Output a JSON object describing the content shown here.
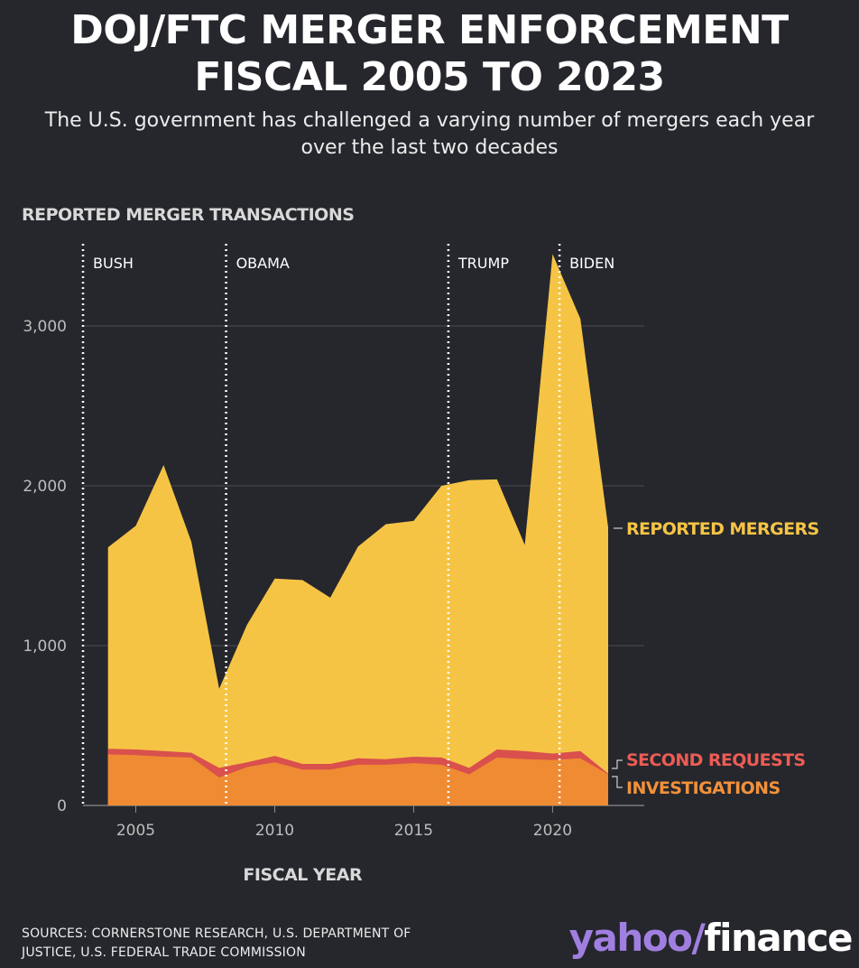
{
  "title_lines": [
    "DOJ/FTC MERGER ENFORCEMENT",
    "FISCAL 2005 TO 2023"
  ],
  "subtitle_lines": [
    "The U.S. government has challenged a varying number of mergers each year",
    "over the last two decades"
  ],
  "sources_lines": [
    "SOURCES: CORNERSTONE RESEARCH, U.S. DEPARTMENT OF",
    "JUSTICE, U.S. FEDERAL TRADE COMMISSION"
  ],
  "logo": {
    "yahoo": "yahoo",
    "slash": "/",
    "finance": "finance"
  },
  "chart_data": {
    "type": "area",
    "ylabel": "REPORTED MERGER TRANSACTIONS",
    "xlabel": "FISCAL YEAR",
    "ylim": [
      0,
      3500
    ],
    "xlim": [
      2003.1,
      2023.3
    ],
    "yticks": [
      0,
      1000,
      2000,
      3000
    ],
    "ytick_labels": [
      "0",
      "1,000",
      "2,000",
      "3,000"
    ],
    "xticks": [
      2005,
      2010,
      2015,
      2020
    ],
    "xtick_labels": [
      "2005",
      "2010",
      "2015",
      "2020"
    ],
    "grid": true,
    "x": [
      2004,
      2005,
      2006,
      2007,
      2008,
      2009,
      2010,
      2011,
      2012,
      2013,
      2014,
      2015,
      2016,
      2017,
      2018,
      2019,
      2020,
      2021,
      2022
    ],
    "series": [
      {
        "name": "REPORTED MERGERS",
        "color": "#f6c445",
        "values": [
          1615,
          1750,
          2130,
          1650,
          730,
          1130,
          1420,
          1410,
          1300,
          1620,
          1760,
          1780,
          2000,
          2035,
          2040,
          1630,
          3450,
          3045,
          1740
        ]
      },
      {
        "name": "SECOND REQUESTS",
        "color": "#d9504d",
        "values": [
          355,
          350,
          340,
          330,
          235,
          270,
          310,
          260,
          260,
          295,
          290,
          305,
          300,
          235,
          350,
          340,
          325,
          340,
          200
        ]
      },
      {
        "name": "INVESTIGATIONS",
        "color": "#ef8b33",
        "values": [
          320,
          315,
          305,
          300,
          175,
          240,
          270,
          225,
          225,
          255,
          255,
          265,
          255,
          195,
          300,
          290,
          285,
          295,
          195
        ]
      }
    ],
    "administrations": [
      {
        "name": "BUSH",
        "start": 2003.1
      },
      {
        "name": "OBAMA",
        "start": 2008.25
      },
      {
        "name": "TRUMP",
        "start": 2016.25
      },
      {
        "name": "BIDEN",
        "start": 2020.25
      }
    ],
    "label_colors": {
      "reported": "#f6c445",
      "second": "#ec5c55",
      "investigations": "#f2913a"
    }
  }
}
